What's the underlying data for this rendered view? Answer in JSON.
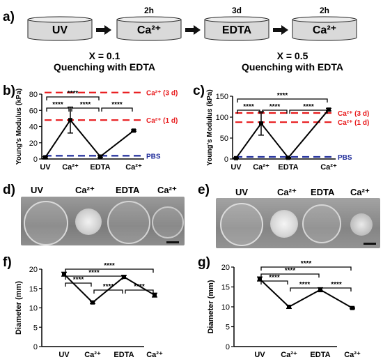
{
  "panel_a": {
    "label": "a)",
    "steps": [
      {
        "name": "UV",
        "duration": ""
      },
      {
        "name": "Ca²⁺",
        "duration": "2h"
      },
      {
        "name": "EDTA",
        "duration": "3d"
      },
      {
        "name": "Ca²⁺",
        "duration": "2h"
      }
    ]
  },
  "conditions": [
    {
      "line1": "X = 0.1",
      "line2": "Quenching with EDTA"
    },
    {
      "line1": "X = 0.5",
      "line2": "Quenching with EDTA"
    }
  ],
  "photos": [
    {
      "label": "d)",
      "titles": [
        "UV",
        "Ca²⁺",
        "EDTA",
        "Ca²⁺"
      ]
    },
    {
      "label": "e)",
      "titles": [
        "UV",
        "Ca²⁺",
        "EDTA",
        "Ca²⁺"
      ]
    }
  ],
  "chart_data": [
    {
      "panel": "b)",
      "type": "line",
      "ylabel": "Young's Modulus (kPa)",
      "categories": [
        "UV",
        "Ca²⁺",
        "EDTA",
        "Ca²⁺"
      ],
      "values": [
        2,
        48,
        3,
        35
      ],
      "errors": [
        1,
        16,
        1,
        1
      ],
      "ylim": [
        0,
        80
      ],
      "yticks": [
        0,
        20,
        40,
        60,
        80
      ],
      "reference_lines": [
        {
          "label": "Ca²⁺ (3 d)",
          "value": 82,
          "color": "#e8191b"
        },
        {
          "label": "Ca²⁺ (1 d)",
          "value": 48,
          "color": "#e8191b"
        },
        {
          "label": "PBS",
          "value": 4,
          "color": "#1f2c9a"
        }
      ],
      "brackets": [
        {
          "from": 0,
          "to": 2,
          "text": "****",
          "level": 3
        },
        {
          "from": 0,
          "to": 1,
          "text": "****",
          "level": 1
        },
        {
          "from": 1,
          "to": 2,
          "text": "****",
          "level": 1
        },
        {
          "from": 2,
          "to": 3,
          "text": "****",
          "level": 1
        }
      ]
    },
    {
      "panel": "c)",
      "type": "line",
      "ylabel": "Young's Modulus (kPa)",
      "categories": [
        "UV",
        "Ca²⁺",
        "EDTA",
        "Ca²⁺"
      ],
      "values": [
        2,
        85,
        3,
        118
      ],
      "errors": [
        1,
        28,
        1,
        3
      ],
      "ylim": [
        0,
        150
      ],
      "yticks": [
        0,
        50,
        100,
        150
      ],
      "reference_lines": [
        {
          "label": "Ca²⁺ (3 d)",
          "value": 110,
          "color": "#e8191b"
        },
        {
          "label": "Ca²⁺ (1 d)",
          "value": 88,
          "color": "#e8191b"
        },
        {
          "label": "PBS",
          "value": 5,
          "color": "#1f2c9a"
        }
      ],
      "brackets": [
        {
          "from": 0,
          "to": 3,
          "text": "****",
          "level": 3
        },
        {
          "from": 0,
          "to": 1,
          "text": "****",
          "level": 1
        },
        {
          "from": 1,
          "to": 2,
          "text": "****",
          "level": 1
        },
        {
          "from": 2,
          "to": 3,
          "text": "****",
          "level": 1
        }
      ]
    },
    {
      "panel": "f)",
      "type": "line",
      "ylabel": "Diameter (mm)",
      "categories": [
        "UV",
        "Ca²⁺",
        "EDTA",
        "Ca²⁺"
      ],
      "values": [
        18.7,
        11.4,
        18.0,
        13.3
      ],
      "errors": [
        0.5,
        0.3,
        0.4,
        0.5
      ],
      "ylim": [
        0,
        20
      ],
      "yticks": [
        0,
        5,
        10,
        15,
        20
      ],
      "reference_lines": [],
      "brackets": [
        {
          "from": 0,
          "to": 3,
          "text": "****",
          "level": 4
        },
        {
          "from": 0,
          "to": 2,
          "text": "****",
          "level": 3
        },
        {
          "from": 0,
          "to": 1,
          "text": "****",
          "level": 2
        },
        {
          "from": 1,
          "to": 2,
          "text": "****",
          "level": 1
        },
        {
          "from": 2,
          "to": 3,
          "text": "****",
          "level": 1
        }
      ]
    },
    {
      "panel": "g)",
      "type": "line",
      "ylabel": "Diameter (mm)",
      "categories": [
        "UV",
        "Ca²⁺",
        "EDTA",
        "Ca²⁺"
      ],
      "values": [
        17.0,
        10.0,
        14.3,
        9.7
      ],
      "errors": [
        0.5,
        0.4,
        0.5,
        0.2
      ],
      "ylim": [
        0,
        20
      ],
      "yticks": [
        0,
        5,
        10,
        15,
        20
      ],
      "reference_lines": [],
      "brackets": [
        {
          "from": 0,
          "to": 3,
          "text": "****",
          "level": 4
        },
        {
          "from": 0,
          "to": 2,
          "text": "****",
          "level": 3
        },
        {
          "from": 0,
          "to": 1,
          "text": "****",
          "level": 2
        },
        {
          "from": 1,
          "to": 2,
          "text": "****",
          "level": 1
        },
        {
          "from": 2,
          "to": 3,
          "text": "****",
          "level": 1
        }
      ]
    }
  ]
}
